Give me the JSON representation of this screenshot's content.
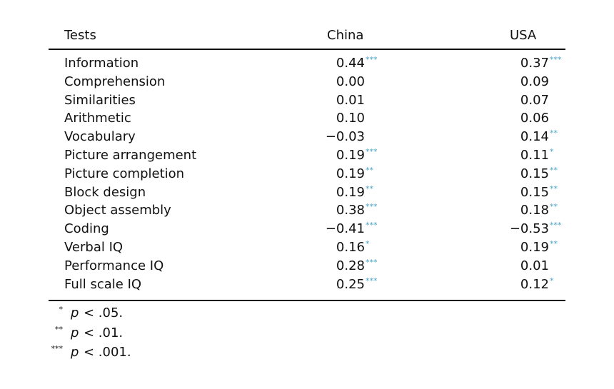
{
  "table": {
    "columns": [
      "Tests",
      "China",
      "USA"
    ],
    "rows": [
      {
        "test": "Information",
        "china": {
          "value": "0.44",
          "sig": "***"
        },
        "usa": {
          "value": "0.37",
          "sig": "***"
        }
      },
      {
        "test": "Comprehension",
        "china": {
          "value": "0.00"
        },
        "usa": {
          "value": "0.09"
        }
      },
      {
        "test": "Similarities",
        "china": {
          "value": "0.01"
        },
        "usa": {
          "value": "0.07"
        }
      },
      {
        "test": "Arithmetic",
        "china": {
          "value": "0.10"
        },
        "usa": {
          "value": "0.06"
        }
      },
      {
        "test": "Vocabulary",
        "china": {
          "value": "−0.03"
        },
        "usa": {
          "value": "0.14",
          "sig": "**"
        }
      },
      {
        "test": "Picture arrangement",
        "china": {
          "value": "0.19",
          "sig": "***"
        },
        "usa": {
          "value": "0.11",
          "sig": "*"
        }
      },
      {
        "test": "Picture completion",
        "china": {
          "value": "0.19",
          "sig": "**"
        },
        "usa": {
          "value": "0.15",
          "sig": "**"
        }
      },
      {
        "test": "Block design",
        "china": {
          "value": "0.19",
          "sig": "**"
        },
        "usa": {
          "value": "0.15",
          "sig": "**"
        }
      },
      {
        "test": "Object assembly",
        "china": {
          "value": "0.38",
          "sig": "***"
        },
        "usa": {
          "value": "0.18",
          "sig": "**"
        }
      },
      {
        "test": "Coding",
        "china": {
          "value": "−0.41",
          "sig": "***"
        },
        "usa": {
          "value": "−0.53",
          "sig": "***"
        }
      },
      {
        "test": "Verbal IQ",
        "china": {
          "value": "0.16",
          "sig": "*"
        },
        "usa": {
          "value": "0.19",
          "sig": "**"
        }
      },
      {
        "test": "Performance IQ",
        "china": {
          "value": "0.28",
          "sig": "***"
        },
        "usa": {
          "value": "0.01"
        }
      },
      {
        "test": "Full scale IQ",
        "china": {
          "value": "0.25",
          "sig": "***"
        },
        "usa": {
          "value": "0.12",
          "sig": "*"
        }
      }
    ],
    "footnotes": [
      {
        "marker": "*",
        "variable": "p",
        "condition": "< .05."
      },
      {
        "marker": "**",
        "variable": "p",
        "condition": "< .01."
      },
      {
        "marker": "***",
        "variable": "p",
        "condition": "< .001."
      }
    ]
  }
}
